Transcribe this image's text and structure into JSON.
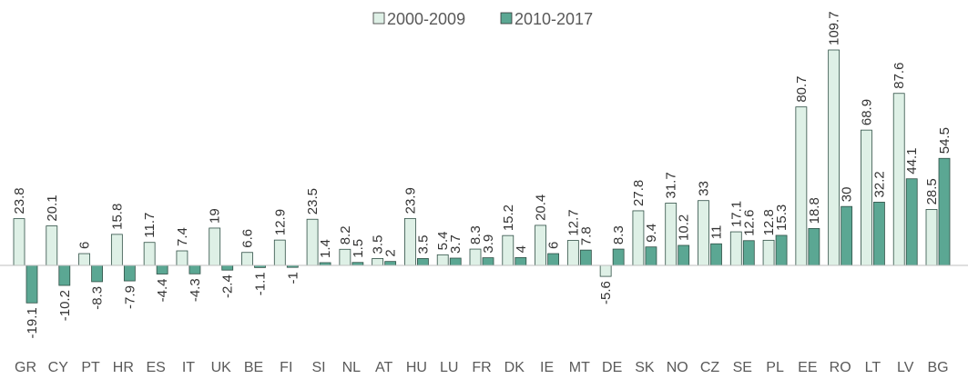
{
  "chart_data": {
    "type": "bar",
    "categories": [
      "GR",
      "CY",
      "PT",
      "HR",
      "ES",
      "IT",
      "UK",
      "BE",
      "FI",
      "SI",
      "NL",
      "AT",
      "HU",
      "LU",
      "FR",
      "DK",
      "IE",
      "MT",
      "DE",
      "SK",
      "NO",
      "CZ",
      "SE",
      "PL",
      "EE",
      "RO",
      "LT",
      "LV",
      "BG"
    ],
    "series": [
      {
        "name": "2000-2009",
        "color": "#def0e6",
        "values": [
          23.8,
          20.1,
          6,
          15.8,
          11.7,
          7.4,
          19,
          6.6,
          12.9,
          23.5,
          8.2,
          3.5,
          23.9,
          5.4,
          8.3,
          15.2,
          20.4,
          12.7,
          -5.6,
          27.8,
          31.7,
          33,
          17.1,
          12.8,
          80.7,
          109.7,
          68.9,
          87.6,
          28.5
        ]
      },
      {
        "name": "2010-2017",
        "color": "#5ba793",
        "values": [
          -19.1,
          -10.2,
          -8.3,
          -7.9,
          -4.4,
          -4.3,
          -2.4,
          -1.1,
          -1,
          1.4,
          1.5,
          2,
          3.5,
          3.7,
          3.9,
          4,
          6,
          7.8,
          8.3,
          9.4,
          10.2,
          11,
          12.6,
          15.3,
          18.8,
          30,
          32.2,
          44.1,
          54.5
        ]
      }
    ],
    "legend": "top"
  }
}
